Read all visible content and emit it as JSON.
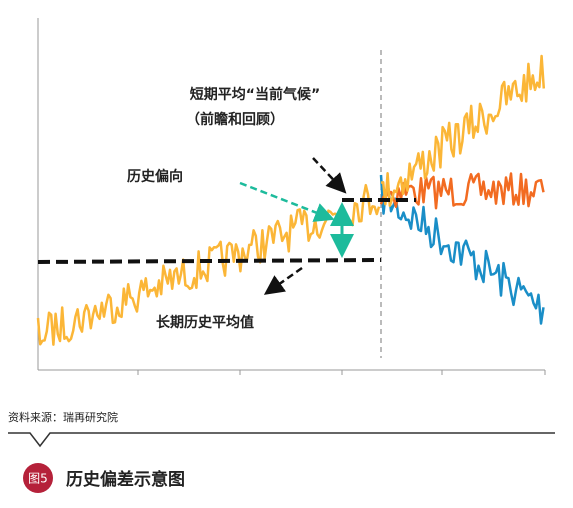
{
  "diagram": {
    "labels": {
      "short_term": "短期平均“当前气候”",
      "short_term_note": "（前瞻和回顾）",
      "bias": "历史偏向",
      "long_term": "长期历史平均值"
    },
    "source": "资料来源：瑞再研究院",
    "figure": {
      "badge": "图5",
      "title": "历史偏差示意图"
    }
  }
}
